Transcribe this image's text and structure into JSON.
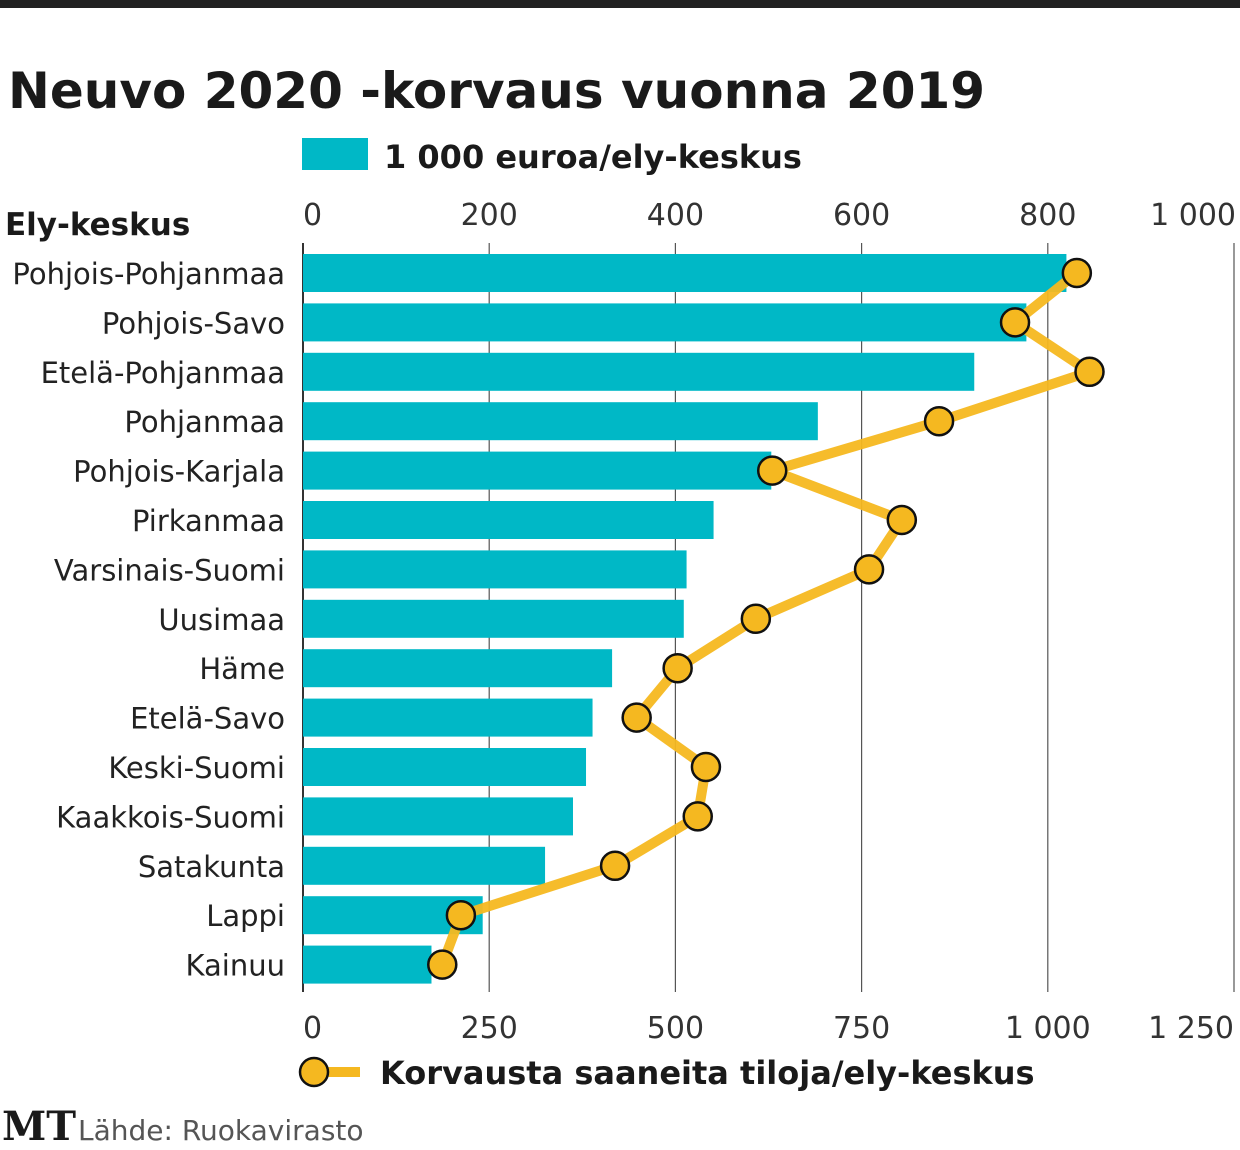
{
  "chart_data": {
    "type": "bar",
    "title": "Neuvo 2020 -korvaus vuonna 2019",
    "category_header": "Ely-keskus",
    "categories": [
      "Pohjois-Pohjanmaa",
      "Pohjois-Savo",
      "Etelä-Pohjanmaa",
      "Pohjanmaa",
      "Pohjois-Karjala",
      "Pirkanmaa",
      "Varsinais-Suomi",
      "Uusimaa",
      "Häme",
      "Etelä-Savo",
      "Keski-Suomi",
      "Kaakkois-Suomi",
      "Satakunta",
      "Lappi",
      "Kainuu"
    ],
    "orientation": "horizontal",
    "series": [
      {
        "name": "1 000 euroa/ely-keskus",
        "type": "bar",
        "axis": "top",
        "color": "#00b8c6",
        "values": [
          820,
          777,
          721,
          553,
          503,
          441,
          412,
          409,
          332,
          311,
          304,
          290,
          260,
          193,
          138
        ]
      },
      {
        "name": "Korvausta saaneita tiloja/ely-keskus",
        "type": "line",
        "axis": "bottom",
        "color": "#f5b820",
        "values": [
          1039,
          956,
          1056,
          854,
          630,
          804,
          760,
          608,
          503,
          448,
          541,
          530,
          419,
          212,
          187
        ]
      }
    ],
    "top_axis": {
      "range": [
        0,
        1000
      ],
      "ticks": [
        "0",
        "200",
        "400",
        "600",
        "800",
        "1 000"
      ],
      "tick_values": [
        0,
        200,
        400,
        600,
        800,
        1000
      ]
    },
    "bottom_axis": {
      "range": [
        0,
        1250
      ],
      "ticks": [
        "0",
        "250",
        "500",
        "750",
        "1 000",
        "1 250"
      ],
      "tick_values": [
        0,
        250,
        500,
        750,
        1000,
        1250
      ]
    },
    "grid": true,
    "legend_placement": "top and bottom"
  },
  "footer": {
    "logo": "MT",
    "source": "Lähde: Ruokavirasto"
  }
}
